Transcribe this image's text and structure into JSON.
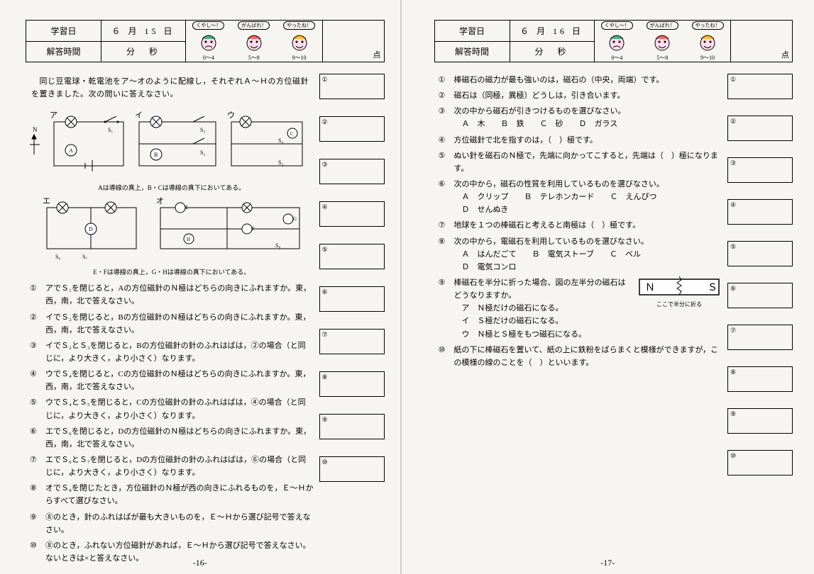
{
  "page_left": {
    "number": "-16-",
    "header": {
      "date_label": "学習日",
      "time_label": "解答時間",
      "date_value": "６ 月 15 日",
      "time_value": "分　秒",
      "faces": [
        {
          "tag": "くやし〜！",
          "range": "0〜4"
        },
        {
          "tag": "がんばれ！",
          "range": "5〜8"
        },
        {
          "tag": "やったね！",
          "range": "9〜10"
        }
      ],
      "score_suffix": "点"
    },
    "intro": "　同じ豆電球・乾電池をア〜オのように配線し，それぞれＡ〜Ｈの方位磁針を置きました。次の問いに答えなさい。",
    "circuit_labels": {
      "row1": [
        "ア",
        "イ",
        "ウ"
      ],
      "row2": [
        "エ",
        "オ"
      ],
      "note1": "Aは導線の真上，B・Cは導線の真下においてある。",
      "note2": "E・Fは導線の真上，G・Hは導線の真下においてある。"
    },
    "questions": [
      {
        "n": "①",
        "t": "アでＳ₁を閉じると，Aの方位磁針のＮ極はどちらの向きにふれますか。東，西，南，北で答えなさい。"
      },
      {
        "n": "②",
        "t": "イでＳ₂を閉じると，Bの方位磁針のＮ極はどちらの向きにふれますか。東，西，南，北で答えなさい。"
      },
      {
        "n": "③",
        "t": "イでＳ₂とＳ₃を閉じると，Bの方位磁針の針のふれはばは，②の場合（と同じに，より大きく，より小さく）なります。"
      },
      {
        "n": "④",
        "t": "ウでＳ₄を閉じると，Cの方位磁針のＮ極はどちらの向きにふれますか。東，西，南，北で答えなさい。"
      },
      {
        "n": "⑤",
        "t": "ウでＳ₄とＳ₅を閉じると，Cの方位磁針の針のふれはばは，④の場合（と同じに，より大きく，より小さく）なります。"
      },
      {
        "n": "⑥",
        "t": "エでＳ₆を閉じると，Dの方位磁針のＮ極はどちらの向きにふれますか。東，西，南，北で答えなさい。"
      },
      {
        "n": "⑦",
        "t": "エでＳ₆とＳ₇を閉じると，Dの方位磁針の針のふれはばは，⑥の場合（と同じに，より大きく，より小さく）なります。"
      },
      {
        "n": "⑧",
        "t": "オでＳ₈を閉じたとき，方位磁針のＮ極が西の向きにふれるものを，Ｅ〜Ｈからすべて選びなさい。"
      },
      {
        "n": "⑨",
        "t": "⑧のとき，針のふれはばが最も大きいものを，Ｅ〜Ｈから選び記号で答えなさい。"
      },
      {
        "n": "⑩",
        "t": "⑧のとき，ふれない方位磁針があれば，Ｅ〜Ｈから選び記号で答えなさい。ないときは×と答えなさい。"
      }
    ],
    "answer_box_labels": [
      "①",
      "②",
      "③",
      "④",
      "⑤",
      "⑥",
      "⑦",
      "⑧",
      "⑨",
      "⑩"
    ]
  },
  "page_right": {
    "number": "-17-",
    "header": {
      "date_label": "学習日",
      "time_label": "解答時間",
      "date_value": "６ 月 16 日",
      "time_value": "分　秒",
      "faces": [
        {
          "tag": "くやし〜！",
          "range": "0〜4"
        },
        {
          "tag": "がんばれ！",
          "range": "5〜8"
        },
        {
          "tag": "やったね！",
          "range": "9〜10"
        }
      ],
      "score_suffix": "点"
    },
    "questions": [
      {
        "n": "①",
        "t": "棒磁石の磁力が最も強いのは，磁石の（中央，両端）です。"
      },
      {
        "n": "②",
        "t": "磁石は（同極，異極）どうしは，引き合います。"
      },
      {
        "n": "③",
        "t": "次の中から磁石が引きつけるものを選びなさい。\n　Ａ　木　　Ｂ　鉄　　Ｃ　砂　　Ｄ　ガラス"
      },
      {
        "n": "④",
        "t": "方位磁針で北を指すのは，（　）極です。"
      },
      {
        "n": "⑤",
        "t": "ぬい針を磁石のＮ極で，先端に向かってこすると，先端は（　）極になります。"
      },
      {
        "n": "⑥",
        "t": "次の中から，磁石の性質を利用しているものを選びなさい。\n　Ａ　クリップ　　Ｂ　テレホンカード　　Ｃ　えんぴつ\n　Ｄ　せんぬき"
      },
      {
        "n": "⑦",
        "t": "地球を１つの棒磁石と考えると南極は（　）極です。"
      },
      {
        "n": "⑧",
        "t": "次の中から，電磁石を利用しているものを選びなさい。\n　Ａ　はんだごて　　Ｂ　電気ストーブ　　Ｃ　ベル\n　Ｄ　電気コンロ"
      },
      {
        "n": "⑨",
        "t": "棒磁石を半分に折った場合、図の左半分の磁石はどうなりますか。\n　ア　Ｎ極だけの磁石になる。\n　イ　Ｓ極だけの磁石になる。\n　ウ　Ｎ極とＳ極をもつ磁石になる。",
        "diagram": true,
        "diagram_caption": "ここで半分に折る",
        "diagram_N": "Ｎ",
        "diagram_S": "Ｓ"
      },
      {
        "n": "⑩",
        "t": "紙の下に棒磁石を置いて、紙の上に鉄粉をばらまくと模様ができますが，この模様の線のことを（　）といいます。"
      }
    ],
    "answer_box_labels": [
      "①",
      "②",
      "③",
      "④",
      "⑤",
      "⑥",
      "⑦",
      "⑧",
      "⑨",
      "⑩"
    ]
  }
}
